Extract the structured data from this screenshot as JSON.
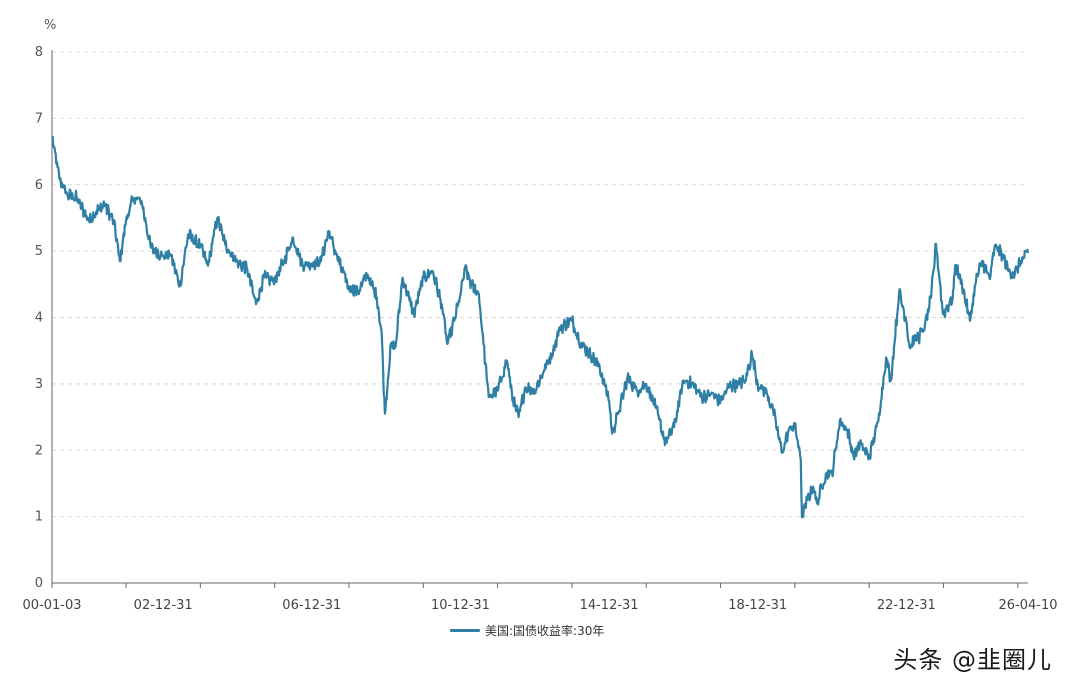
{
  "watermark": "头条 @韭圈儿",
  "chart_data": {
    "type": "line",
    "unit_label": "%",
    "ylim": [
      0,
      8
    ],
    "yticks": [
      "0",
      "1",
      "2",
      "3",
      "4",
      "5",
      "6",
      "7",
      "8"
    ],
    "xticks": [
      "00-01-03",
      "02-12-31",
      "06-12-31",
      "10-12-31",
      "14-12-31",
      "18-12-31",
      "22-12-31",
      "26-04-10"
    ],
    "grid": true,
    "legend_position": "bottom",
    "color": "#2e7fa3",
    "series": [
      {
        "name": "美国:国债收益率:30年",
        "x": [
          "2000-01-03",
          "2000-03-15",
          "2000-06-01",
          "2000-09-01",
          "2000-12-31",
          "2001-03-15",
          "2001-06-01",
          "2001-09-01",
          "2001-10-31",
          "2001-12-31",
          "2002-03-15",
          "2002-06-01",
          "2002-09-01",
          "2002-12-31",
          "2003-03-15",
          "2003-06-13",
          "2003-09-01",
          "2003-12-31",
          "2004-03-15",
          "2004-06-15",
          "2004-09-01",
          "2004-12-31",
          "2005-03-31",
          "2005-06-30",
          "2005-09-15",
          "2005-12-31",
          "2006-03-31",
          "2006-06-30",
          "2006-09-30",
          "2006-12-31",
          "2007-03-31",
          "2007-06-15",
          "2007-09-30",
          "2007-12-31",
          "2008-03-31",
          "2008-06-30",
          "2008-09-30",
          "2008-11-15",
          "2008-12-18",
          "2009-02-15",
          "2009-04-01",
          "2009-06-10",
          "2009-09-30",
          "2009-12-31",
          "2010-03-31",
          "2010-06-30",
          "2010-08-25",
          "2010-10-31",
          "2010-12-31",
          "2011-02-15",
          "2011-04-15",
          "2011-06-30",
          "2011-08-15",
          "2011-10-05",
          "2011-12-31",
          "2012-03-31",
          "2012-05-31",
          "2012-07-25",
          "2012-09-30",
          "2012-12-31",
          "2013-03-31",
          "2013-06-30",
          "2013-09-05",
          "2013-12-31",
          "2014-03-31",
          "2014-06-30",
          "2014-09-30",
          "2014-12-31",
          "2015-01-30",
          "2015-03-31",
          "2015-06-30",
          "2015-09-30",
          "2015-12-31",
          "2016-03-31",
          "2016-07-08",
          "2016-09-30",
          "2016-12-31",
          "2017-03-31",
          "2017-06-30",
          "2017-09-30",
          "2017-12-31",
          "2018-03-31",
          "2018-06-30",
          "2018-08-31",
          "2018-11-05",
          "2018-12-31",
          "2019-03-31",
          "2019-05-31",
          "2019-08-28",
          "2019-10-31",
          "2019-12-31",
          "2020-02-28",
          "2020-03-09",
          "2020-04-30",
          "2020-06-30",
          "2020-08-04",
          "2020-10-31",
          "2020-12-31",
          "2021-03-18",
          "2021-05-31",
          "2021-07-31",
          "2021-09-30",
          "2021-12-31",
          "2022-03-31",
          "2022-06-15",
          "2022-08-01",
          "2022-10-21",
          "2022-12-31",
          "2023-02-01",
          "2023-03-31",
          "2023-04-30",
          "2023-06-30",
          "2023-08-31",
          "2023-10-19",
          "2023-12-27",
          "2024-03-31",
          "2024-04-25",
          "2024-06-30",
          "2024-09-16",
          "2024-11-15",
          "2025-01-14",
          "2025-03-31",
          "2025-05-21",
          "2025-07-31",
          "2025-09-30",
          "2025-11-30",
          "2026-01-31",
          "2026-04-10"
        ],
        "values": [
          6.72,
          6.1,
          5.85,
          5.8,
          5.46,
          5.6,
          5.7,
          5.45,
          4.85,
          5.47,
          5.8,
          5.75,
          5.05,
          4.92,
          4.95,
          4.47,
          5.25,
          5.07,
          4.78,
          5.5,
          5.1,
          4.83,
          4.75,
          4.2,
          4.6,
          4.55,
          4.85,
          5.2,
          4.8,
          4.81,
          4.85,
          5.3,
          4.8,
          4.45,
          4.4,
          4.65,
          4.3,
          3.8,
          2.55,
          3.6,
          3.55,
          4.6,
          4.05,
          4.6,
          4.7,
          4.2,
          3.6,
          3.95,
          4.34,
          4.75,
          4.5,
          4.35,
          3.6,
          2.8,
          2.9,
          3.35,
          2.75,
          2.5,
          2.95,
          2.9,
          3.2,
          3.5,
          3.85,
          3.95,
          3.6,
          3.45,
          3.25,
          2.75,
          2.25,
          2.55,
          3.1,
          2.9,
          3.0,
          2.65,
          2.11,
          2.35,
          3.05,
          3.0,
          2.8,
          2.85,
          2.74,
          2.97,
          3.0,
          3.05,
          3.45,
          3.0,
          2.85,
          2.6,
          1.96,
          2.3,
          2.39,
          1.85,
          0.99,
          1.25,
          1.45,
          1.2,
          1.65,
          1.65,
          2.45,
          2.3,
          1.9,
          2.1,
          1.9,
          2.45,
          3.4,
          3.05,
          4.38,
          3.95,
          3.55,
          3.7,
          3.7,
          3.85,
          4.3,
          5.11,
          4.05,
          4.3,
          4.79,
          4.5,
          3.95,
          4.55,
          4.85,
          4.58,
          5.09,
          4.95,
          4.7,
          4.65,
          4.85,
          4.98
        ]
      }
    ]
  }
}
